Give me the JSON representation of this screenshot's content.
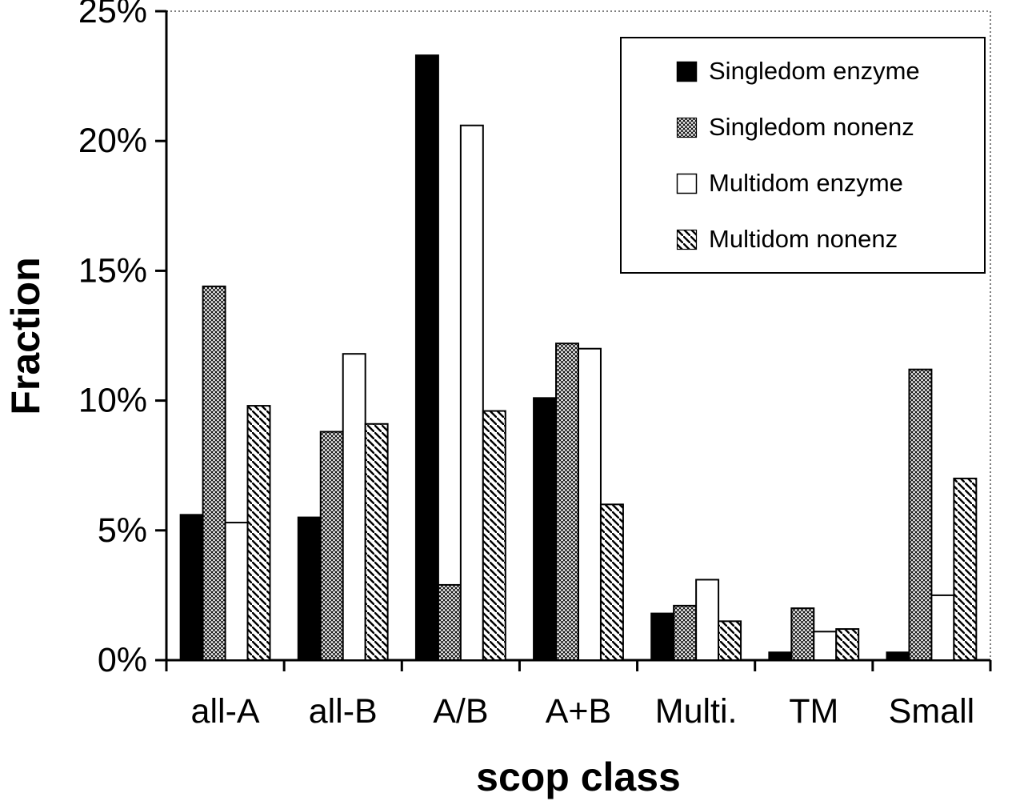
{
  "chart_data": {
    "type": "bar",
    "title": "",
    "xlabel": "scop class",
    "ylabel": "Fraction",
    "ylim": [
      0,
      25
    ],
    "ytick_step": 5,
    "ytick_labels": [
      "0%",
      "5%",
      "10%",
      "15%",
      "20%",
      "25%"
    ],
    "categories": [
      "all-A",
      "all-B",
      "A/B",
      "A+B",
      "Multi.",
      "TM",
      "Small"
    ],
    "series": [
      {
        "name": "Singledom enzyme",
        "pattern": "solid-black",
        "values": [
          5.6,
          5.5,
          23.3,
          10.1,
          1.8,
          0.3,
          0.3
        ]
      },
      {
        "name": "Singledom nonenz",
        "pattern": "crosshatch",
        "values": [
          14.4,
          8.8,
          2.9,
          12.2,
          2.1,
          2.0,
          11.2
        ]
      },
      {
        "name": "Multidom enzyme",
        "pattern": "white",
        "values": [
          5.3,
          11.8,
          20.6,
          12.0,
          3.1,
          1.1,
          2.5
        ]
      },
      {
        "name": "Multidom nonenz",
        "pattern": "diagonal",
        "values": [
          9.8,
          9.1,
          9.6,
          6.0,
          1.5,
          1.2,
          7.0
        ]
      }
    ],
    "legend_position": "top-right",
    "grid": false,
    "colors": {
      "bar_outline": "#000000",
      "solid_fill": "#000000",
      "background": "#ffffff"
    }
  }
}
